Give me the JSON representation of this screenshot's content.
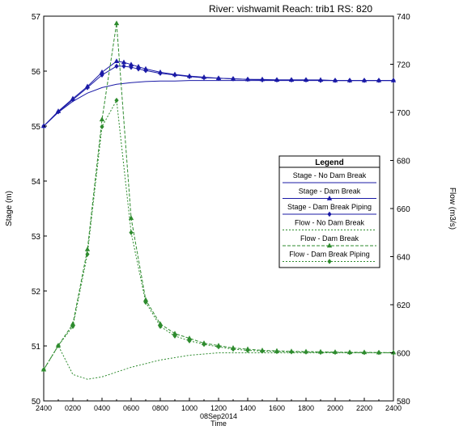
{
  "header": {
    "title": "River: vishwamit   Reach: trib1   RS: 820"
  },
  "chart_data": {
    "type": "line",
    "title": "River: vishwamit   Reach: trib1   RS: 820",
    "x_tick_labels": [
      "2400",
      "0200",
      "0400",
      "0600",
      "0800",
      "1000",
      "1200",
      "1400",
      "1600",
      "1800",
      "2000",
      "2200",
      "2400"
    ],
    "x_date_label": "08Sep2014",
    "xlabel": "Time",
    "xlim": [
      0,
      24
    ],
    "ylabel_left": "Stage (m)",
    "ylim_left": [
      50,
      57
    ],
    "y_ticks_left": [
      "50",
      "51",
      "52",
      "53",
      "54",
      "55",
      "56",
      "57"
    ],
    "ylabel_right": "Flow (m3/s)",
    "ylim_right": [
      580,
      740
    ],
    "y_ticks_right": [
      "580",
      "600",
      "620",
      "640",
      "660",
      "680",
      "700",
      "720",
      "740"
    ],
    "legend": {
      "title": "Legend",
      "placement": "right-middle",
      "entries": [
        "Stage - No Dam Break",
        "Stage - Dam Break",
        "Stage - Dam Break Piping",
        "Flow - No Dam Break",
        "Flow - Dam Break",
        "Flow - Dam Break Piping"
      ]
    },
    "series": [
      {
        "name": "Stage - No Dam Break",
        "axis": "left",
        "color": "#1a1aa6",
        "dash": "solid",
        "marker": "none",
        "x": [
          0,
          1,
          2,
          3,
          4,
          5,
          6,
          7,
          8,
          9,
          10,
          12,
          14,
          16,
          18,
          20,
          22,
          24
        ],
        "y": [
          55.0,
          55.25,
          55.45,
          55.6,
          55.7,
          55.76,
          55.79,
          55.81,
          55.82,
          55.82,
          55.83,
          55.83,
          55.83,
          55.83,
          55.83,
          55.83,
          55.83,
          55.83
        ]
      },
      {
        "name": "Stage - Dam Break",
        "axis": "left",
        "color": "#1a1aa6",
        "dash": "solid",
        "marker": "triangle",
        "x": [
          0,
          1,
          2,
          3,
          4,
          5,
          5.5,
          6,
          6.5,
          7,
          8,
          9,
          10,
          11,
          12,
          13,
          14,
          15,
          16,
          17,
          18,
          19,
          20,
          21,
          22,
          23,
          24
        ],
        "y": [
          55.0,
          55.27,
          55.5,
          55.72,
          55.98,
          56.18,
          56.16,
          56.12,
          56.08,
          56.04,
          55.98,
          55.94,
          55.91,
          55.89,
          55.87,
          55.86,
          55.85,
          55.85,
          55.84,
          55.84,
          55.84,
          55.84,
          55.83,
          55.83,
          55.83,
          55.83,
          55.83
        ]
      },
      {
        "name": "Stage - Dam Break Piping",
        "axis": "left",
        "color": "#1a1aa6",
        "dash": "solid",
        "marker": "diamond",
        "x": [
          0,
          1,
          2,
          3,
          4,
          5,
          5.5,
          6,
          6.5,
          7,
          8,
          9,
          10,
          11,
          12,
          13,
          14,
          15,
          16,
          17,
          18,
          19,
          20,
          21,
          22,
          23,
          24
        ],
        "y": [
          55.0,
          55.26,
          55.48,
          55.7,
          55.93,
          56.09,
          56.09,
          56.07,
          56.04,
          56.01,
          55.96,
          55.93,
          55.9,
          55.88,
          55.87,
          55.86,
          55.85,
          55.84,
          55.84,
          55.84,
          55.84,
          55.83,
          55.83,
          55.83,
          55.83,
          55.83,
          55.83
        ]
      },
      {
        "name": "Flow - No Dam Break",
        "axis": "right",
        "color": "#2e8b2e",
        "dash": "dot",
        "marker": "none",
        "x": [
          0,
          1,
          2,
          3,
          4,
          5,
          6,
          8,
          10,
          12,
          14,
          16,
          18,
          20,
          22,
          24
        ],
        "y": [
          593,
          603,
          591,
          589,
          590,
          592,
          594,
          597,
          599,
          600,
          600,
          600,
          600,
          600,
          600,
          600
        ]
      },
      {
        "name": "Flow - Dam Break",
        "axis": "right",
        "color": "#2e8b2e",
        "dash": "dash",
        "marker": "triangle",
        "x": [
          0,
          1,
          2,
          3,
          4,
          5,
          6,
          7,
          8,
          9,
          10,
          11,
          12,
          13,
          14,
          15,
          16,
          17,
          18,
          19,
          20,
          21,
          22,
          23,
          24
        ],
        "y": [
          593,
          603,
          612,
          643,
          697,
          737,
          656,
          622,
          612,
          608,
          606,
          604,
          603,
          602,
          601.5,
          601,
          600.8,
          600.6,
          600.5,
          600.4,
          600.3,
          600.2,
          600.2,
          600.1,
          600.1
        ]
      },
      {
        "name": "Flow - Dam Break Piping",
        "axis": "right",
        "color": "#2e8b2e",
        "dash": "dot",
        "marker": "diamond",
        "x": [
          0,
          1,
          2,
          3,
          4,
          5,
          6,
          7,
          8,
          9,
          10,
          11,
          12,
          13,
          14,
          15,
          16,
          17,
          18,
          19,
          20,
          21,
          22,
          23,
          24
        ],
        "y": [
          593,
          603,
          611,
          641,
          694,
          705,
          650,
          621,
          611,
          607,
          605,
          603.5,
          602.5,
          601.5,
          601,
          600.7,
          600.5,
          600.4,
          600.3,
          600.2,
          600.2,
          600.1,
          600.1,
          600.1,
          600
        ]
      }
    ]
  }
}
